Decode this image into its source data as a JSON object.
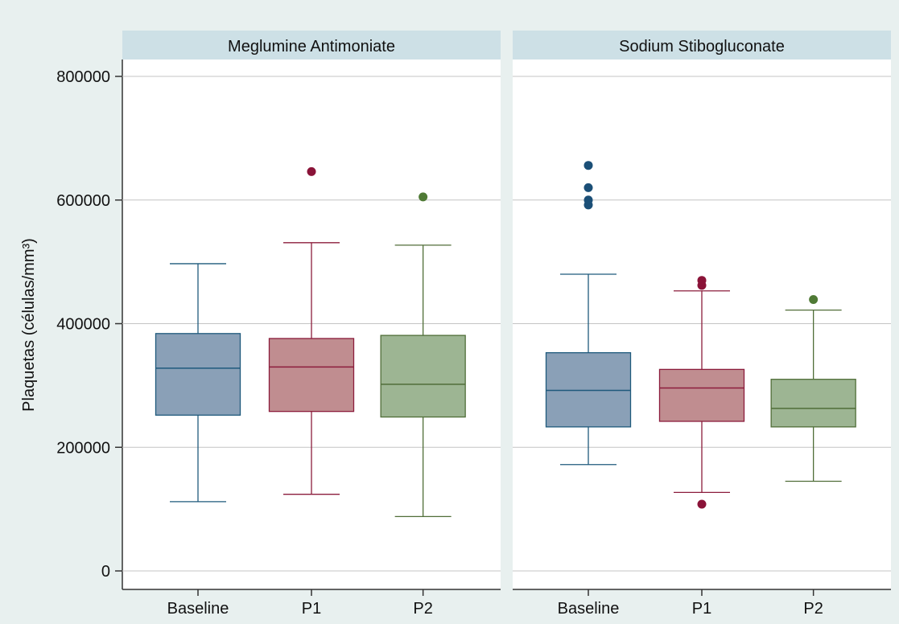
{
  "chart_data": {
    "type": "boxplot",
    "ylabel": "Plaquetas (células/mm³)",
    "ylim": [
      0,
      800000
    ],
    "yticks": [
      0,
      200000,
      400000,
      600000,
      800000
    ],
    "ytick_labels": [
      "0",
      "200000",
      "400000",
      "600000",
      "800000"
    ],
    "grid": true,
    "categories": [
      "Baseline",
      "P1",
      "P2"
    ],
    "colors": {
      "Baseline": {
        "fill": "#8aa0b7",
        "stroke": "#1f5a7c",
        "outlier": "#1b4f77"
      },
      "P1": {
        "fill": "#c08d90",
        "stroke": "#8c1d3c",
        "outlier": "#8a1338"
      },
      "P2": {
        "fill": "#9db593",
        "stroke": "#506e38",
        "outlier": "#4f7a35"
      }
    },
    "panels": [
      {
        "title": "Meglumine Antimoniate",
        "boxes": [
          {
            "category": "Baseline",
            "whisker_low": 112000,
            "q1": 252000,
            "median": 328000,
            "q3": 384000,
            "whisker_high": 497000,
            "outliers": []
          },
          {
            "category": "P1",
            "whisker_low": 124000,
            "q1": 258000,
            "median": 330000,
            "q3": 376000,
            "whisker_high": 531000,
            "outliers": [
              646000
            ]
          },
          {
            "category": "P2",
            "whisker_low": 88000,
            "q1": 249000,
            "median": 302000,
            "q3": 381000,
            "whisker_high": 527000,
            "outliers": [
              605000
            ]
          }
        ]
      },
      {
        "title": "Sodium Stibogluconate",
        "boxes": [
          {
            "category": "Baseline",
            "whisker_low": 172000,
            "q1": 233000,
            "median": 292000,
            "q3": 353000,
            "whisker_high": 480000,
            "outliers": [
              592000,
              600000,
              620000,
              656000
            ]
          },
          {
            "category": "P1",
            "whisker_low": 127000,
            "q1": 242000,
            "median": 296000,
            "q3": 326000,
            "whisker_high": 453000,
            "outliers": [
              108000,
              462000,
              470000
            ]
          },
          {
            "category": "P2",
            "whisker_low": 145000,
            "q1": 233000,
            "median": 263000,
            "q3": 310000,
            "whisker_high": 422000,
            "outliers": [
              439000
            ]
          }
        ]
      }
    ]
  }
}
